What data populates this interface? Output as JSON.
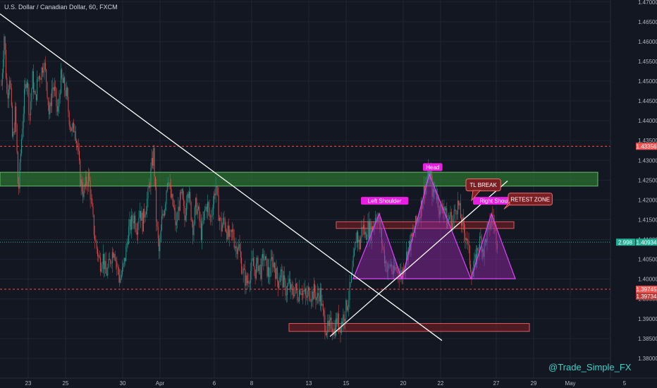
{
  "header": {
    "title": "U.S. Dollar / Canadian Dollar, 60, FXCM"
  },
  "watermark": "@Trade_Simple_FX",
  "chart_data": {
    "type": "candlestick",
    "symbol": "USDCAD",
    "timeframe": "60",
    "broker": "FXCM",
    "ylim": [
      1.375,
      1.4705
    ],
    "y_ticks": [
      1.38,
      1.385,
      1.39,
      1.395,
      1.4,
      1.405,
      1.41,
      1.415,
      1.42,
      1.425,
      1.43,
      1.435,
      1.44,
      1.445,
      1.45,
      1.455,
      1.46,
      1.465,
      1.47
    ],
    "y_tick_labels": [
      "1.38000",
      "1.38500",
      "1.39000",
      "1.39500",
      "1.40000",
      "1.40500",
      "1.41000",
      "1.41500",
      "1.42000",
      "1.42500",
      "1.43000",
      "1.43500",
      "1.44000",
      "1.44500",
      "1.45000",
      "1.45500",
      "1.46000",
      "1.46500",
      "1.47000"
    ],
    "x_ticks": [
      {
        "label": "23",
        "x": 40
      },
      {
        "label": "25",
        "x": 93
      },
      {
        "label": "30",
        "x": 174
      },
      {
        "label": "Apr",
        "x": 227
      },
      {
        "label": "6",
        "x": 304
      },
      {
        "label": "8",
        "x": 357
      },
      {
        "label": "13",
        "x": 438
      },
      {
        "label": "15",
        "x": 491
      },
      {
        "label": "20",
        "x": 572
      },
      {
        "label": "22",
        "x": 625
      },
      {
        "label": "27",
        "x": 704
      },
      {
        "label": "29",
        "x": 757
      },
      {
        "label": "May",
        "x": 809
      },
      {
        "label": "5",
        "x": 886
      }
    ],
    "price_path": [
      [
        2,
        1.449
      ],
      [
        6,
        1.462
      ],
      [
        10,
        1.446
      ],
      [
        14,
        1.452
      ],
      [
        18,
        1.434
      ],
      [
        22,
        1.443
      ],
      [
        26,
        1.421
      ],
      [
        30,
        1.434
      ],
      [
        34,
        1.445
      ],
      [
        38,
        1.452
      ],
      [
        42,
        1.441
      ],
      [
        46,
        1.451
      ],
      [
        50,
        1.445
      ],
      [
        54,
        1.451
      ],
      [
        58,
        1.452
      ],
      [
        62,
        1.455
      ],
      [
        66,
        1.45
      ],
      [
        70,
        1.441
      ],
      [
        74,
        1.449
      ],
      [
        78,
        1.447
      ],
      [
        82,
        1.441
      ],
      [
        86,
        1.451
      ],
      [
        90,
        1.449
      ],
      [
        94,
        1.447
      ],
      [
        98,
        1.441
      ],
      [
        102,
        1.437
      ],
      [
        106,
        1.439
      ],
      [
        110,
        1.433
      ],
      [
        114,
        1.425
      ],
      [
        118,
        1.422
      ],
      [
        122,
        1.424
      ],
      [
        126,
        1.426
      ],
      [
        130,
        1.418
      ],
      [
        134,
        1.411
      ],
      [
        138,
        1.407
      ],
      [
        142,
        1.404
      ],
      [
        146,
        1.406
      ],
      [
        150,
        1.401
      ],
      [
        154,
        1.403
      ],
      [
        158,
        1.406
      ],
      [
        162,
        1.408
      ],
      [
        166,
        1.403
      ],
      [
        170,
        1.4
      ],
      [
        174,
        1.402
      ],
      [
        178,
        1.406
      ],
      [
        182,
        1.412
      ],
      [
        186,
        1.414
      ],
      [
        190,
        1.416
      ],
      [
        194,
        1.413
      ],
      [
        198,
        1.418
      ],
      [
        202,
        1.414
      ],
      [
        206,
        1.418
      ],
      [
        210,
        1.421
      ],
      [
        214,
        1.427
      ],
      [
        218,
        1.432
      ],
      [
        222,
        1.414
      ],
      [
        226,
        1.406
      ],
      [
        230,
        1.416
      ],
      [
        234,
        1.419
      ],
      [
        238,
        1.427
      ],
      [
        242,
        1.421
      ],
      [
        246,
        1.418
      ],
      [
        250,
        1.413
      ],
      [
        254,
        1.419
      ],
      [
        258,
        1.421
      ],
      [
        262,
        1.415
      ],
      [
        266,
        1.424
      ],
      [
        270,
        1.418
      ],
      [
        274,
        1.413
      ],
      [
        278,
        1.419
      ],
      [
        282,
        1.416
      ],
      [
        286,
        1.411
      ],
      [
        290,
        1.417
      ],
      [
        294,
        1.419
      ],
      [
        298,
        1.415
      ],
      [
        302,
        1.419
      ],
      [
        306,
        1.424
      ],
      [
        310,
        1.417
      ],
      [
        314,
        1.413
      ],
      [
        318,
        1.415
      ],
      [
        322,
        1.412
      ],
      [
        326,
        1.41
      ],
      [
        330,
        1.412
      ],
      [
        334,
        1.408
      ],
      [
        338,
        1.409
      ],
      [
        342,
        1.404
      ],
      [
        346,
        1.401
      ],
      [
        350,
        1.399
      ],
      [
        354,
        1.401
      ],
      [
        358,
        1.404
      ],
      [
        362,
        1.402
      ],
      [
        366,
        1.404
      ],
      [
        370,
        1.402
      ],
      [
        374,
        1.406
      ],
      [
        378,
        1.403
      ],
      [
        382,
        1.401
      ],
      [
        386,
        1.405
      ],
      [
        390,
        1.403
      ],
      [
        394,
        1.399
      ],
      [
        398,
        1.402
      ],
      [
        402,
        1.399
      ],
      [
        406,
        1.397
      ],
      [
        410,
        1.399
      ],
      [
        414,
        1.396
      ],
      [
        418,
        1.398
      ],
      [
        422,
        1.396
      ],
      [
        426,
        1.398
      ],
      [
        430,
        1.397
      ],
      [
        434,
        1.395
      ],
      [
        438,
        1.397
      ],
      [
        442,
        1.396
      ],
      [
        446,
        1.397
      ],
      [
        450,
        1.395
      ],
      [
        454,
        1.397
      ],
      [
        458,
        1.391
      ],
      [
        462,
        1.388
      ],
      [
        466,
        1.387
      ],
      [
        470,
        1.389
      ],
      [
        474,
        1.387
      ],
      [
        478,
        1.39
      ],
      [
        482,
        1.388
      ],
      [
        486,
        1.39
      ],
      [
        490,
        1.392
      ],
      [
        494,
        1.395
      ],
      [
        498,
        1.399
      ],
      [
        502,
        1.405
      ],
      [
        506,
        1.412
      ],
      [
        510,
        1.408
      ],
      [
        514,
        1.414
      ],
      [
        518,
        1.411
      ],
      [
        522,
        1.413
      ],
      [
        526,
        1.412
      ],
      [
        530,
        1.414
      ],
      [
        534,
        1.417
      ],
      [
        538,
        1.414
      ],
      [
        542,
        1.409
      ],
      [
        546,
        1.405
      ],
      [
        550,
        1.402
      ],
      [
        554,
        1.404
      ],
      [
        558,
        1.401
      ],
      [
        562,
        1.403
      ],
      [
        566,
        1.402
      ],
      [
        570,
        1.401
      ],
      [
        574,
        1.404
      ],
      [
        578,
        1.407
      ],
      [
        582,
        1.409
      ],
      [
        586,
        1.411
      ],
      [
        590,
        1.414
      ],
      [
        594,
        1.416
      ],
      [
        598,
        1.419
      ],
      [
        602,
        1.423
      ],
      [
        606,
        1.425
      ],
      [
        610,
        1.427
      ],
      [
        614,
        1.421
      ],
      [
        618,
        1.423
      ],
      [
        622,
        1.419
      ],
      [
        626,
        1.417
      ],
      [
        630,
        1.419
      ],
      [
        634,
        1.414
      ],
      [
        638,
        1.416
      ],
      [
        642,
        1.414
      ],
      [
        646,
        1.418
      ],
      [
        650,
        1.419
      ],
      [
        654,
        1.415
      ],
      [
        658,
        1.412
      ],
      [
        662,
        1.411
      ],
      [
        666,
        1.405
      ],
      [
        670,
        1.401
      ],
      [
        674,
        1.404
      ],
      [
        678,
        1.408
      ],
      [
        682,
        1.41
      ],
      [
        686,
        1.407
      ],
      [
        690,
        1.411
      ],
      [
        694,
        1.413
      ],
      [
        698,
        1.416
      ],
      [
        702,
        1.413
      ],
      [
        706,
        1.409
      ]
    ],
    "levels": [
      {
        "name": "1.43356 resistance",
        "price": 1.43356,
        "color": "#f05350",
        "label": "1.43356"
      },
      {
        "name": "1.40934 current",
        "price": 1.40934,
        "color": "#22ab94",
        "label": "1.40934",
        "label2": "2.998"
      },
      {
        "name": "1.39745 support",
        "price": 1.39745,
        "color": "#f05350",
        "label": "1.39745",
        "label2": "1.39734"
      }
    ],
    "zones": [
      {
        "name": "green-zone",
        "x0": 0,
        "x1": 848,
        "y_top": 1.427,
        "y_bottom": 1.4235,
        "fill": "#2e7d32",
        "stroke": "#66bb6a"
      },
      {
        "name": "neckline-zone",
        "x0": 477,
        "x1": 729,
        "y_top": 1.4145,
        "y_bottom": 1.4128,
        "fill": "#6b1f24",
        "stroke": "#e05860"
      },
      {
        "name": "demand-zone",
        "x0": 410,
        "x1": 751,
        "y_top": 1.3888,
        "y_bottom": 1.3868,
        "fill": "#6b1f24",
        "stroke": "#e05860"
      }
    ],
    "trendlines": [
      {
        "name": "downtrend-line",
        "p1": [
          0,
          1.467
        ],
        "p2": [
          627,
          1.3845
        ]
      },
      {
        "name": "uptrend-line",
        "p1": [
          468,
          1.3855
        ],
        "p2": [
          720,
          1.4248
        ]
      }
    ],
    "pattern": {
      "triangles": [
        {
          "name": "left-shoulder-triangle",
          "pts": [
            [
              501,
              1.4001
            ],
            [
              538,
              1.4165
            ],
            [
              570,
              1.4001
            ]
          ]
        },
        {
          "name": "head-triangle",
          "pts": [
            [
              570,
              1.4001
            ],
            [
              609,
              1.4265
            ],
            [
              668,
              1.4001
            ]
          ]
        },
        {
          "name": "right-shoulder-triangle",
          "pts": [
            [
              668,
              1.4001
            ],
            [
              697,
              1.4165
            ],
            [
              731,
              1.4001
            ]
          ]
        }
      ]
    },
    "annotations": [
      {
        "name": "left-shoulder-label",
        "text": "Left Shoulder",
        "x": 512,
        "price": 1.4197,
        "style": "magenta"
      },
      {
        "name": "head-label",
        "text": "Head",
        "x": 600,
        "price": 1.4282,
        "style": "magenta"
      },
      {
        "name": "right-shoulder-label",
        "text": "Right Shoulder",
        "x": 671,
        "price": 1.4197,
        "style": "magenta"
      },
      {
        "name": "tl-break-label",
        "text": "TL BREAK",
        "x": 661,
        "price": 1.4238,
        "style": "callout"
      },
      {
        "name": "retest-zone-label",
        "text": "RETEST ZONE",
        "x": 721,
        "price": 1.4202,
        "style": "callout"
      }
    ]
  },
  "colors": {
    "background": "#131722",
    "grid": "#1f2433",
    "up": "#26a69a",
    "down": "#ef5350",
    "axis_text": "#b2b5be",
    "trendline": "#ffffff",
    "pattern_fill": "#9c27b0",
    "pattern_stroke": "#e040fb",
    "magenta_label": "#e91ee3",
    "callout_fill": "#7b1f24",
    "callout_stroke": "#ef6b6b",
    "watermark": "#3fd0c6"
  }
}
